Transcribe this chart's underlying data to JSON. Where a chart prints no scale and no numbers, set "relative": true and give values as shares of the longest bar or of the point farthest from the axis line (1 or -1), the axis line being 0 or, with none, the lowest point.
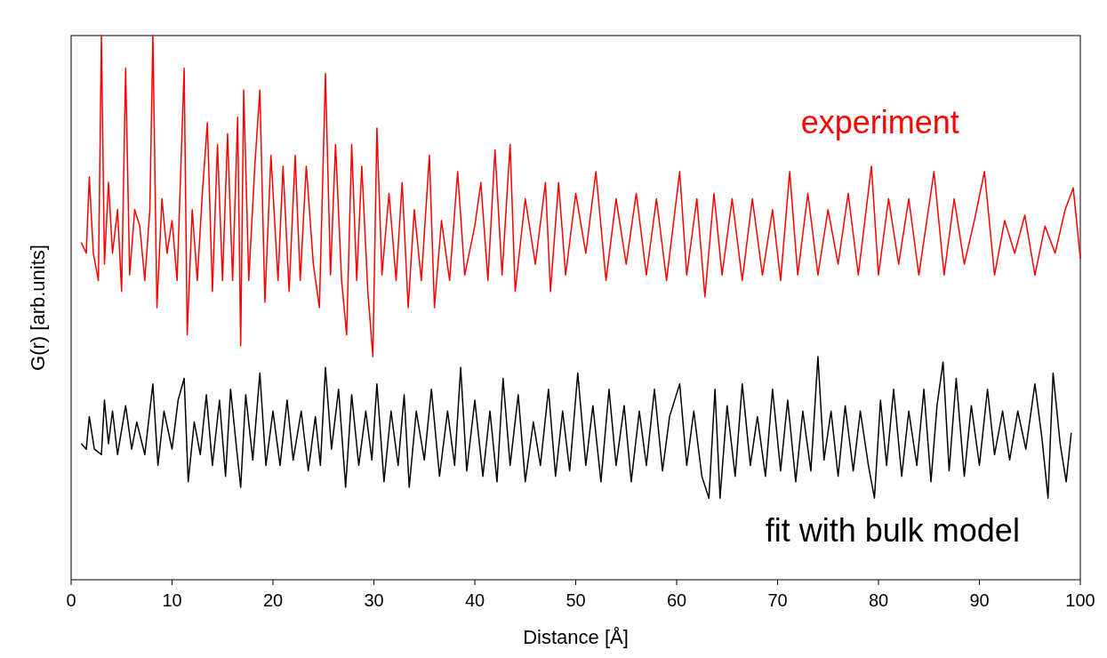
{
  "chart_data": {
    "type": "line",
    "xlabel": "Distance [Å]",
    "ylabel": "G(r) [arb.units]",
    "relative": true,
    "xlim": [
      0,
      100
    ],
    "xticks": [
      0,
      10,
      20,
      30,
      40,
      50,
      60,
      70,
      80,
      90,
      100
    ],
    "grid": false,
    "marker": "none",
    "line_style": "solid",
    "series": [
      {
        "name": "experiment",
        "color": "#ff0000",
        "x": [
          1,
          1.5,
          1.8,
          2.2,
          2.7,
          3.0,
          3.3,
          3.7,
          4.1,
          4.6,
          5.0,
          5.4,
          5.8,
          6.3,
          6.8,
          7.3,
          7.8,
          8.1,
          8.5,
          9.0,
          9.5,
          10.0,
          10.5,
          11.2,
          11.5,
          12.0,
          12.5,
          13.0,
          13.5,
          14.0,
          14.5,
          15.0,
          15.5,
          16.0,
          16.5,
          16.8,
          17.1,
          17.6,
          18.2,
          18.7,
          19.2,
          19.8,
          20.5,
          21.0,
          21.6,
          22.2,
          22.7,
          23.3,
          24.0,
          24.6,
          25.2,
          25.7,
          26.2,
          26.8,
          27.3,
          27.8,
          28.3,
          28.8,
          29.4,
          29.9,
          30.3,
          30.8,
          31.5,
          32.2,
          32.8,
          33.4,
          34.0,
          34.7,
          35.5,
          36.0,
          36.7,
          37.5,
          38.3,
          39.0,
          40.0,
          40.6,
          41.3,
          42.0,
          42.7,
          43.5,
          44.0,
          45.0,
          46.0,
          47.0,
          47.5,
          48.3,
          49.0,
          50.0,
          51.0,
          52.0,
          53.0,
          54.0,
          55.0,
          56.0,
          57.0,
          58.0,
          59.0,
          60.3,
          61.0,
          62.0,
          62.8,
          63.7,
          64.5,
          65.5,
          66.5,
          67.5,
          68.5,
          69.5,
          70.3,
          71.2,
          72.0,
          73.0,
          74.0,
          75.0,
          76.0,
          77.0,
          78.0,
          79.3,
          80.0,
          81.0,
          82.0,
          83.0,
          84.0,
          85.5,
          86.5,
          87.5,
          88.5,
          89.5,
          90.5,
          91.5,
          92.5,
          93.5,
          94.5,
          95.5,
          96.5,
          97.5,
          98.5,
          99.3,
          100
        ],
        "values": [
          0.62,
          0.6,
          0.74,
          0.6,
          0.55,
          1.0,
          0.58,
          0.73,
          0.6,
          0.68,
          0.53,
          0.94,
          0.56,
          0.68,
          0.65,
          0.55,
          0.68,
          1.0,
          0.5,
          0.7,
          0.6,
          0.66,
          0.55,
          0.94,
          0.45,
          0.68,
          0.55,
          0.71,
          0.84,
          0.53,
          0.8,
          0.55,
          0.82,
          0.55,
          0.85,
          0.43,
          0.9,
          0.55,
          0.76,
          0.9,
          0.51,
          0.78,
          0.55,
          0.76,
          0.53,
          0.78,
          0.55,
          0.76,
          0.58,
          0.5,
          0.93,
          0.56,
          0.8,
          0.55,
          0.45,
          0.8,
          0.55,
          0.76,
          0.53,
          0.41,
          0.83,
          0.56,
          0.71,
          0.55,
          0.73,
          0.5,
          0.68,
          0.55,
          0.78,
          0.5,
          0.66,
          0.55,
          0.75,
          0.56,
          0.65,
          0.73,
          0.55,
          0.79,
          0.56,
          0.8,
          0.53,
          0.7,
          0.58,
          0.73,
          0.53,
          0.73,
          0.56,
          0.71,
          0.6,
          0.75,
          0.55,
          0.7,
          0.58,
          0.71,
          0.56,
          0.7,
          0.55,
          0.75,
          0.56,
          0.7,
          0.52,
          0.71,
          0.56,
          0.7,
          0.55,
          0.7,
          0.56,
          0.68,
          0.55,
          0.75,
          0.56,
          0.71,
          0.56,
          0.68,
          0.58,
          0.71,
          0.56,
          0.76,
          0.56,
          0.7,
          0.58,
          0.7,
          0.56,
          0.75,
          0.56,
          0.7,
          0.58,
          0.66,
          0.75,
          0.56,
          0.66,
          0.6,
          0.67,
          0.56,
          0.65,
          0.6,
          0.68,
          0.72,
          0.59
        ]
      },
      {
        "name": "fit with bulk model",
        "color": "#000000",
        "x": [
          1,
          1.5,
          1.8,
          2.3,
          3.0,
          3.3,
          3.7,
          4.1,
          4.6,
          5.4,
          6.0,
          6.5,
          7.3,
          8.1,
          8.6,
          9.2,
          10.0,
          10.6,
          11.2,
          11.6,
          12.2,
          12.8,
          13.4,
          14.0,
          14.7,
          15.3,
          15.8,
          16.4,
          16.8,
          17.3,
          18.0,
          18.7,
          19.3,
          20.0,
          20.7,
          21.4,
          22.0,
          22.8,
          23.5,
          24.2,
          24.7,
          25.2,
          25.8,
          26.5,
          27.2,
          27.8,
          28.5,
          29.2,
          29.8,
          30.3,
          31.0,
          31.7,
          32.4,
          33.0,
          33.5,
          34.2,
          35.0,
          35.7,
          36.5,
          37.3,
          38.0,
          38.6,
          39.2,
          40.0,
          40.8,
          41.5,
          42.2,
          42.8,
          43.5,
          44.3,
          45.0,
          45.8,
          46.5,
          47.3,
          48.0,
          48.7,
          49.4,
          50.2,
          51.0,
          51.7,
          52.5,
          53.3,
          54.0,
          54.8,
          55.5,
          56.3,
          57.0,
          57.8,
          58.6,
          59.3,
          60.3,
          61.0,
          61.7,
          62.5,
          63.2,
          63.8,
          64.3,
          65.0,
          65.8,
          66.5,
          67.3,
          68.0,
          68.8,
          69.5,
          70.3,
          71.0,
          71.8,
          72.5,
          73.3,
          74.0,
          74.6,
          75.3,
          76.0,
          76.7,
          77.5,
          78.2,
          79.0,
          79.6,
          80.2,
          80.8,
          81.5,
          82.3,
          83.0,
          83.8,
          84.5,
          85.2,
          85.8,
          86.4,
          87.0,
          87.7,
          88.5,
          89.2,
          90.0,
          90.8,
          91.5,
          92.3,
          93.0,
          93.8,
          94.6,
          95.5,
          96.2,
          96.8,
          97.3,
          98.0,
          98.6,
          99.1
        ],
        "values": [
          0.25,
          0.24,
          0.3,
          0.24,
          0.23,
          0.33,
          0.25,
          0.31,
          0.23,
          0.32,
          0.24,
          0.29,
          0.23,
          0.36,
          0.21,
          0.31,
          0.24,
          0.33,
          0.37,
          0.18,
          0.29,
          0.23,
          0.34,
          0.21,
          0.33,
          0.19,
          0.35,
          0.24,
          0.17,
          0.34,
          0.22,
          0.38,
          0.21,
          0.31,
          0.21,
          0.33,
          0.22,
          0.31,
          0.2,
          0.3,
          0.21,
          0.39,
          0.24,
          0.35,
          0.17,
          0.34,
          0.21,
          0.31,
          0.22,
          0.36,
          0.18,
          0.31,
          0.21,
          0.34,
          0.17,
          0.31,
          0.22,
          0.35,
          0.19,
          0.31,
          0.21,
          0.39,
          0.2,
          0.33,
          0.19,
          0.31,
          0.18,
          0.37,
          0.21,
          0.34,
          0.18,
          0.29,
          0.21,
          0.35,
          0.19,
          0.31,
          0.2,
          0.38,
          0.21,
          0.32,
          0.18,
          0.35,
          0.21,
          0.32,
          0.18,
          0.31,
          0.21,
          0.35,
          0.2,
          0.3,
          0.36,
          0.21,
          0.31,
          0.19,
          0.15,
          0.35,
          0.15,
          0.32,
          0.19,
          0.36,
          0.21,
          0.3,
          0.19,
          0.35,
          0.2,
          0.33,
          0.18,
          0.31,
          0.2,
          0.41,
          0.22,
          0.31,
          0.19,
          0.32,
          0.2,
          0.31,
          0.21,
          0.15,
          0.33,
          0.21,
          0.35,
          0.19,
          0.31,
          0.21,
          0.35,
          0.18,
          0.32,
          0.4,
          0.2,
          0.37,
          0.19,
          0.32,
          0.21,
          0.35,
          0.23,
          0.31,
          0.22,
          0.31,
          0.24,
          0.36,
          0.26,
          0.15,
          0.38,
          0.25,
          0.18,
          0.27
        ]
      }
    ]
  }
}
